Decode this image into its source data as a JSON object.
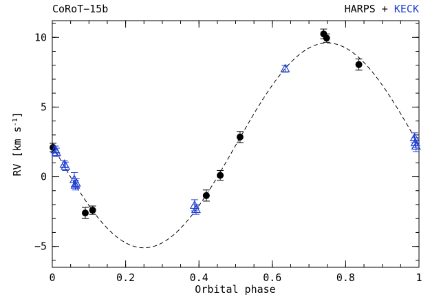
{
  "chart_data": {
    "type": "scatter",
    "title_left": "CoRoT−15b",
    "title_right_parts": [
      {
        "text": "HARPS + ",
        "color": "#000000"
      },
      {
        "text": "KECK",
        "color": "#1f3fd6"
      }
    ],
    "xlabel": "Orbital phase",
    "ylabel": "RV [km s",
    "ylabel_sup": "-1",
    "ylabel_end": "]",
    "xlim": [
      0,
      1
    ],
    "ylim": [
      -6.5,
      11.2
    ],
    "x_ticks": [
      "0",
      "0.2",
      "0.4",
      "0.6",
      "0.8",
      "1"
    ],
    "x_tick_values": [
      0,
      0.2,
      0.4,
      0.6,
      0.8,
      1
    ],
    "y_ticks": [
      "−5",
      "0",
      "5",
      "10"
    ],
    "y_tick_values": [
      -5,
      0,
      5,
      10
    ],
    "grid": false,
    "model": {
      "name": "Keplerian fit",
      "style": "dashed",
      "gamma": 2.25,
      "amplitude": 7.35,
      "peak_phase": 0.75
    },
    "series": [
      {
        "name": "HARPS",
        "marker": "circle-filled",
        "color": "#000000",
        "points": [
          {
            "x": 0.002,
            "y": 2.1,
            "err": 0.3
          },
          {
            "x": 0.09,
            "y": -2.6,
            "err": 0.4
          },
          {
            "x": 0.11,
            "y": -2.4,
            "err": 0.3
          },
          {
            "x": 0.42,
            "y": -1.35,
            "err": 0.4
          },
          {
            "x": 0.458,
            "y": 0.1,
            "err": 0.35
          },
          {
            "x": 0.512,
            "y": 2.85,
            "err": 0.4
          },
          {
            "x": 0.74,
            "y": 10.25,
            "err": 0.35
          },
          {
            "x": 0.748,
            "y": 9.95,
            "err": 0.3
          },
          {
            "x": 0.836,
            "y": 8.05,
            "err": 0.4
          }
        ]
      },
      {
        "name": "KECK",
        "marker": "triangle-open",
        "color": "#1f3fd6",
        "points": [
          {
            "x": 0.008,
            "y": 1.95,
            "err": 0.25
          },
          {
            "x": 0.011,
            "y": 1.75,
            "err": 0.3
          },
          {
            "x": 0.033,
            "y": 0.9,
            "err": 0.25
          },
          {
            "x": 0.036,
            "y": 0.75,
            "err": 0.3
          },
          {
            "x": 0.06,
            "y": -0.2,
            "err": 0.5
          },
          {
            "x": 0.063,
            "y": -0.6,
            "err": 0.35
          },
          {
            "x": 0.065,
            "y": -0.45,
            "err": 0.3
          },
          {
            "x": 0.388,
            "y": -2.05,
            "err": 0.4
          },
          {
            "x": 0.392,
            "y": -2.35,
            "err": 0.35
          },
          {
            "x": 0.635,
            "y": 7.75,
            "err": 0.25
          },
          {
            "x": 0.988,
            "y": 2.8,
            "err": 0.35
          },
          {
            "x": 0.99,
            "y": 2.45,
            "err": 0.35
          },
          {
            "x": 0.992,
            "y": 2.2,
            "err": 0.4
          }
        ]
      }
    ]
  }
}
